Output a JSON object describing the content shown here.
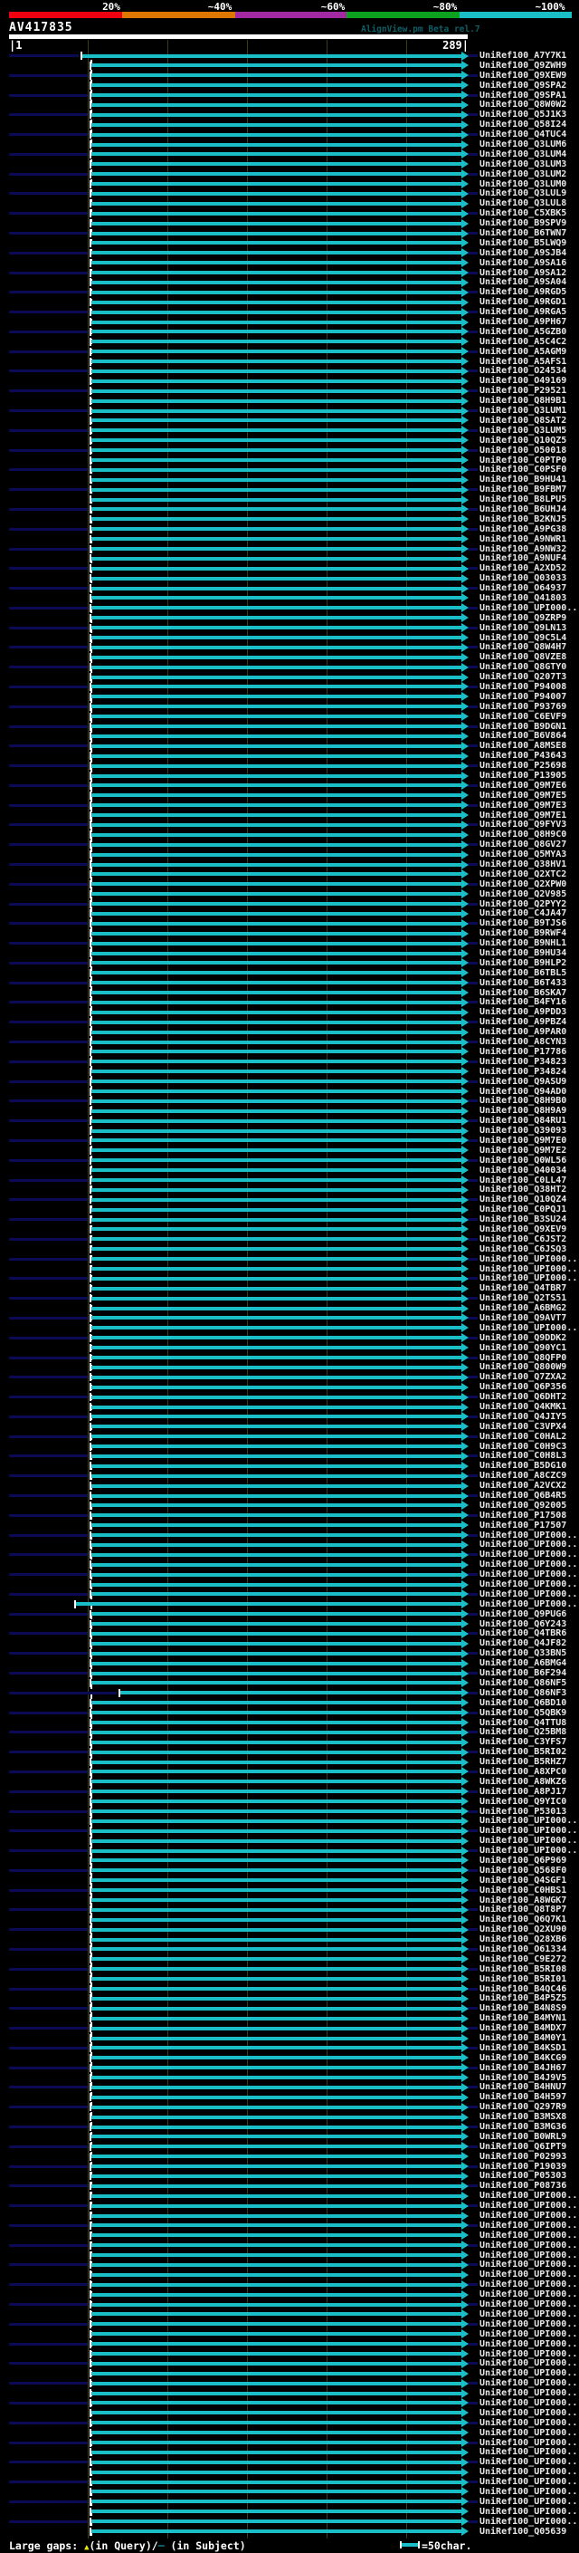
{
  "colors": {
    "background": "#000000",
    "scale_red": "#ee0011",
    "scale_orange": "#dd7700",
    "scale_purple": "#a329a3",
    "scale_green": "#0ca11e",
    "scale_cyan": "#1abec6",
    "bar_cyan": "#1abec6",
    "unaligned_navy": "#0a0a55",
    "grid_olive": "#3b3b19",
    "app_title_teal": "#0d5f66",
    "label_white": "#e8e8e8",
    "gap_yellow": "#e8e800"
  },
  "header": {
    "percent_labels": [
      "20%",
      "~40%",
      "~60%",
      "~80%",
      "~100%"
    ],
    "query_id": "AV417835",
    "app_title": "AlignView.pm Beta rel.7",
    "ruler_start": "|1",
    "ruler_end": "289|"
  },
  "footer": {
    "large_gaps_prefix": "Large gaps: ",
    "query_gap_symbol": "▲",
    "query_gap_text": "(in Query)/",
    "subject_gap_symbol": "─",
    "subject_gap_text": " (in Subject)",
    "scalebar_label": "=50char."
  },
  "chart_data": {
    "type": "bar",
    "title": "AV417835",
    "xlabel": "query position",
    "x_range": [
      1,
      289
    ],
    "grid": "on",
    "legend_position": "top",
    "identity_color_scale": [
      {
        "label": "20%",
        "color": "#ee0011"
      },
      {
        "label": "~40%",
        "color": "#dd7700"
      },
      {
        "label": "~60%",
        "color": "#a329a3"
      },
      {
        "label": "~80%",
        "color": "#0ca11e"
      },
      {
        "label": "~100%",
        "color": "#1abec6"
      }
    ],
    "bar_end": 289,
    "default_bar_start": 52,
    "bar_start_overrides": {
      "0": 47,
      "157": 43,
      "166": 71
    },
    "categories": [
      "UniRef100_A7Y7K1",
      "UniRef100_Q9ZWH9",
      "UniRef100_Q9XEW9",
      "UniRef100_Q9SPA2",
      "UniRef100_Q9SPA1",
      "UniRef100_Q8W0W2",
      "UniRef100_Q5J1K3",
      "UniRef100_Q58I24",
      "UniRef100_Q4TUC4",
      "UniRef100_Q3LUM6",
      "UniRef100_Q3LUM4",
      "UniRef100_Q3LUM3",
      "UniRef100_Q3LUM2",
      "UniRef100_Q3LUM0",
      "UniRef100_Q3LUL9",
      "UniRef100_Q3LUL8",
      "UniRef100_C5XBK5",
      "UniRef100_B9SPV9",
      "UniRef100_B6TWN7",
      "UniRef100_B5LWQ9",
      "UniRef100_A9SJB4",
      "UniRef100_A9SA16",
      "UniRef100_A9SA12",
      "UniRef100_A9SA04",
      "UniRef100_A9RGD5",
      "UniRef100_A9RGD1",
      "UniRef100_A9RGA5",
      "UniRef100_A9PH67",
      "UniRef100_A5GZB0",
      "UniRef100_A5C4C2",
      "UniRef100_A5AGM9",
      "UniRef100_A5AFS1",
      "UniRef100_O24534",
      "UniRef100_O49169",
      "UniRef100_P29521",
      "UniRef100_Q8H9B1",
      "UniRef100_Q3LUM1",
      "UniRef100_Q8SAT2",
      "UniRef100_Q3LUM5",
      "UniRef100_Q10QZ5",
      "UniRef100_O50018",
      "UniRef100_C0PTP0",
      "UniRef100_C0PSF0",
      "UniRef100_B9HU41",
      "UniRef100_B9FBM7",
      "UniRef100_B8LPU5",
      "UniRef100_B6UHJ4",
      "UniRef100_B2KNJ5",
      "UniRef100_A9PG38",
      "UniRef100_A9NWR1",
      "UniRef100_A9NW32",
      "UniRef100_A9NUF4",
      "UniRef100_A2XD52",
      "UniRef100_Q03033",
      "UniRef100_O64937",
      "UniRef100_Q41803",
      "UniRef100_UPI000..",
      "UniRef100_Q9ZRP9",
      "UniRef100_Q9LN13",
      "UniRef100_Q9C5L4",
      "UniRef100_Q8W4H7",
      "UniRef100_Q8VZE8",
      "UniRef100_Q8GTY0",
      "UniRef100_Q207T3",
      "UniRef100_P94008",
      "UniRef100_P94007",
      "UniRef100_P93769",
      "UniRef100_C6EVF9",
      "UniRef100_B9DGN1",
      "UniRef100_B6V864",
      "UniRef100_A8MSE8",
      "UniRef100_P43643",
      "UniRef100_P25698",
      "UniRef100_P13905",
      "UniRef100_Q9M7E6",
      "UniRef100_Q9M7E5",
      "UniRef100_Q9M7E3",
      "UniRef100_Q9M7E1",
      "UniRef100_Q9FYV3",
      "UniRef100_Q8H9C0",
      "UniRef100_Q8GV27",
      "UniRef100_Q5MYA3",
      "UniRef100_Q38HV1",
      "UniRef100_Q2XTC2",
      "UniRef100_Q2XPW0",
      "UniRef100_Q2V985",
      "UniRef100_Q2PYY2",
      "UniRef100_C4JA47",
      "UniRef100_B9TJS6",
      "UniRef100_B9RWF4",
      "UniRef100_B9NHL1",
      "UniRef100_B9HU34",
      "UniRef100_B9HLP2",
      "UniRef100_B6TBL5",
      "UniRef100_B6T433",
      "UniRef100_B6SKA7",
      "UniRef100_B4FY16",
      "UniRef100_A9PDD3",
      "UniRef100_A9PBZ4",
      "UniRef100_A9PAR0",
      "UniRef100_A8CYN3",
      "UniRef100_P17786",
      "UniRef100_P34823",
      "UniRef100_P34824",
      "UniRef100_Q9ASU9",
      "UniRef100_Q94AD0",
      "UniRef100_Q8H9B0",
      "UniRef100_Q8H9A9",
      "UniRef100_Q84RU1",
      "UniRef100_Q39093",
      "UniRef100_Q9M7E0",
      "UniRef100_Q9M7E2",
      "UniRef100_Q0WL56",
      "UniRef100_Q40034",
      "UniRef100_C0LL47",
      "UniRef100_Q38HT2",
      "UniRef100_Q10QZ4",
      "UniRef100_C0PQJ1",
      "UniRef100_B3SU24",
      "UniRef100_Q9XEV9",
      "UniRef100_C6JST2",
      "UniRef100_C6JSQ3",
      "UniRef100_UPI000..",
      "UniRef100_UPI000..",
      "UniRef100_UPI000..",
      "UniRef100_Q4TBR7",
      "UniRef100_Q2TS51",
      "UniRef100_A6BMG2",
      "UniRef100_Q9AVT7",
      "UniRef100_UPI000..",
      "UniRef100_Q9DDK2",
      "UniRef100_Q90YC1",
      "UniRef100_Q8QFP0",
      "UniRef100_Q800W9",
      "UniRef100_Q7ZXA2",
      "UniRef100_Q6P356",
      "UniRef100_Q6DHT2",
      "UniRef100_Q4KMK1",
      "UniRef100_Q4JIY5",
      "UniRef100_C3VPX4",
      "UniRef100_C0HAL2",
      "UniRef100_C0H9C3",
      "UniRef100_C0H8L3",
      "UniRef100_B5DG10",
      "UniRef100_A8CZC9",
      "UniRef100_A2VCX2",
      "UniRef100_Q6B4R5",
      "UniRef100_Q92005",
      "UniRef100_P17508",
      "UniRef100_P17507",
      "UniRef100_UPI000..",
      "UniRef100_UPI000..",
      "UniRef100_UPI000..",
      "UniRef100_UPI000..",
      "UniRef100_UPI000..",
      "UniRef100_UPI000..",
      "UniRef100_UPI000..",
      "UniRef100_UPI000..",
      "UniRef100_Q9PUG6",
      "UniRef100_Q6Y243",
      "UniRef100_Q4TBR6",
      "UniRef100_Q4JF82",
      "UniRef100_Q33BN5",
      "UniRef100_A6BMG4",
      "UniRef100_B6F294",
      "UniRef100_Q86NF5",
      "UniRef100_Q86NF3",
      "UniRef100_Q6BD10",
      "UniRef100_Q5QBK9",
      "UniRef100_Q4TTU8",
      "UniRef100_Q25BM8",
      "UniRef100_C3YFS7",
      "UniRef100_B5RI02",
      "UniRef100_B5RHZ7",
      "UniRef100_A8XPC0",
      "UniRef100_A8WKZ6",
      "UniRef100_A8PJ17",
      "UniRef100_Q9YIC0",
      "UniRef100_P53013",
      "UniRef100_UPI000..",
      "UniRef100_UPI000..",
      "UniRef100_UPI000..",
      "UniRef100_UPI000..",
      "UniRef100_Q6P969",
      "UniRef100_Q568F0",
      "UniRef100_Q4SGF1",
      "UniRef100_C0HBS1",
      "UniRef100_A8WGK7",
      "UniRef100_Q8T8P7",
      "UniRef100_Q6Q7K1",
      "UniRef100_Q2XU90",
      "UniRef100_Q28XB6",
      "UniRef100_O61334",
      "UniRef100_C9E272",
      "UniRef100_B5RI08",
      "UniRef100_B5RI01",
      "UniRef100_B4QC46",
      "UniRef100_B4P5Z5",
      "UniRef100_B4N8S9",
      "UniRef100_B4MYN1",
      "UniRef100_B4MDX7",
      "UniRef100_B4M0Y1",
      "UniRef100_B4KSD1",
      "UniRef100_B4KCG9",
      "UniRef100_B4JH67",
      "UniRef100_B4J9V5",
      "UniRef100_B4HNU7",
      "UniRef100_B4H597",
      "UniRef100_Q297R9",
      "UniRef100_B3MSX8",
      "UniRef100_B3MG36",
      "UniRef100_B0WRL9",
      "UniRef100_Q6IPT9",
      "UniRef100_P02993",
      "UniRef100_P19039",
      "UniRef100_P05303",
      "UniRef100_P08736",
      "UniRef100_UPI000..",
      "UniRef100_UPI000..",
      "UniRef100_UPI000..",
      "UniRef100_UPI000..",
      "UniRef100_UPI000..",
      "UniRef100_UPI000..",
      "UniRef100_UPI000..",
      "UniRef100_UPI000..",
      "UniRef100_UPI000..",
      "UniRef100_UPI000..",
      "UniRef100_UPI000..",
      "UniRef100_UPI000..",
      "UniRef100_UPI000..",
      "UniRef100_UPI000..",
      "UniRef100_UPI000..",
      "UniRef100_UPI000..",
      "UniRef100_UPI000..",
      "UniRef100_UPI000..",
      "UniRef100_UPI000..",
      "UniRef100_UPI000..",
      "UniRef100_UPI000..",
      "UniRef100_UPI000..",
      "UniRef100_UPI000..",
      "UniRef100_UPI000..",
      "UniRef100_UPI000..",
      "UniRef100_UPI000..",
      "UniRef100_UPI000..",
      "UniRef100_UPI000..",
      "UniRef100_UPI000..",
      "UniRef100_UPI000..",
      "UniRef100_UPI000..",
      "UniRef100_UPI000..",
      "UniRef100_UPI000..",
      "UniRef100_UPI000..",
      "UniRef100_Q05639"
    ]
  }
}
